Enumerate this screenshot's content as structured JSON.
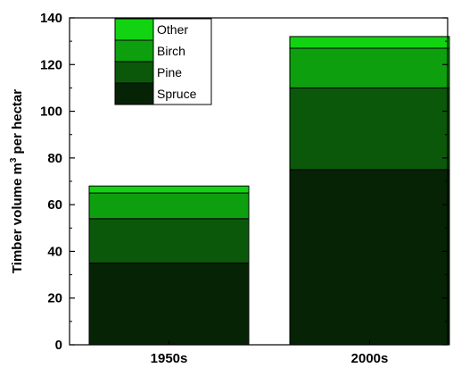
{
  "chart_data": {
    "type": "bar",
    "stacked": true,
    "categories": [
      "1950s",
      "2000s"
    ],
    "series": [
      {
        "name": "Spruce",
        "values": [
          35,
          75
        ],
        "color": "#062306"
      },
      {
        "name": "Pine",
        "values": [
          19,
          35
        ],
        "color": "#0b580b"
      },
      {
        "name": "Birch",
        "values": [
          11,
          17
        ],
        "color": "#0e9f0e"
      },
      {
        "name": "Other",
        "values": [
          3,
          5
        ],
        "color": "#12d312"
      }
    ],
    "legend_order": [
      "Other",
      "Birch",
      "Pine",
      "Spruce"
    ],
    "ylabel_main": "Timber volume m",
    "ylabel_sup": "3",
    "ylabel_tail": " per hectar",
    "xlabel": "",
    "ylim": [
      0,
      140
    ],
    "yticks": [
      0,
      20,
      40,
      60,
      80,
      100,
      120,
      140
    ],
    "grid": false,
    "legend_position": "top-left"
  }
}
